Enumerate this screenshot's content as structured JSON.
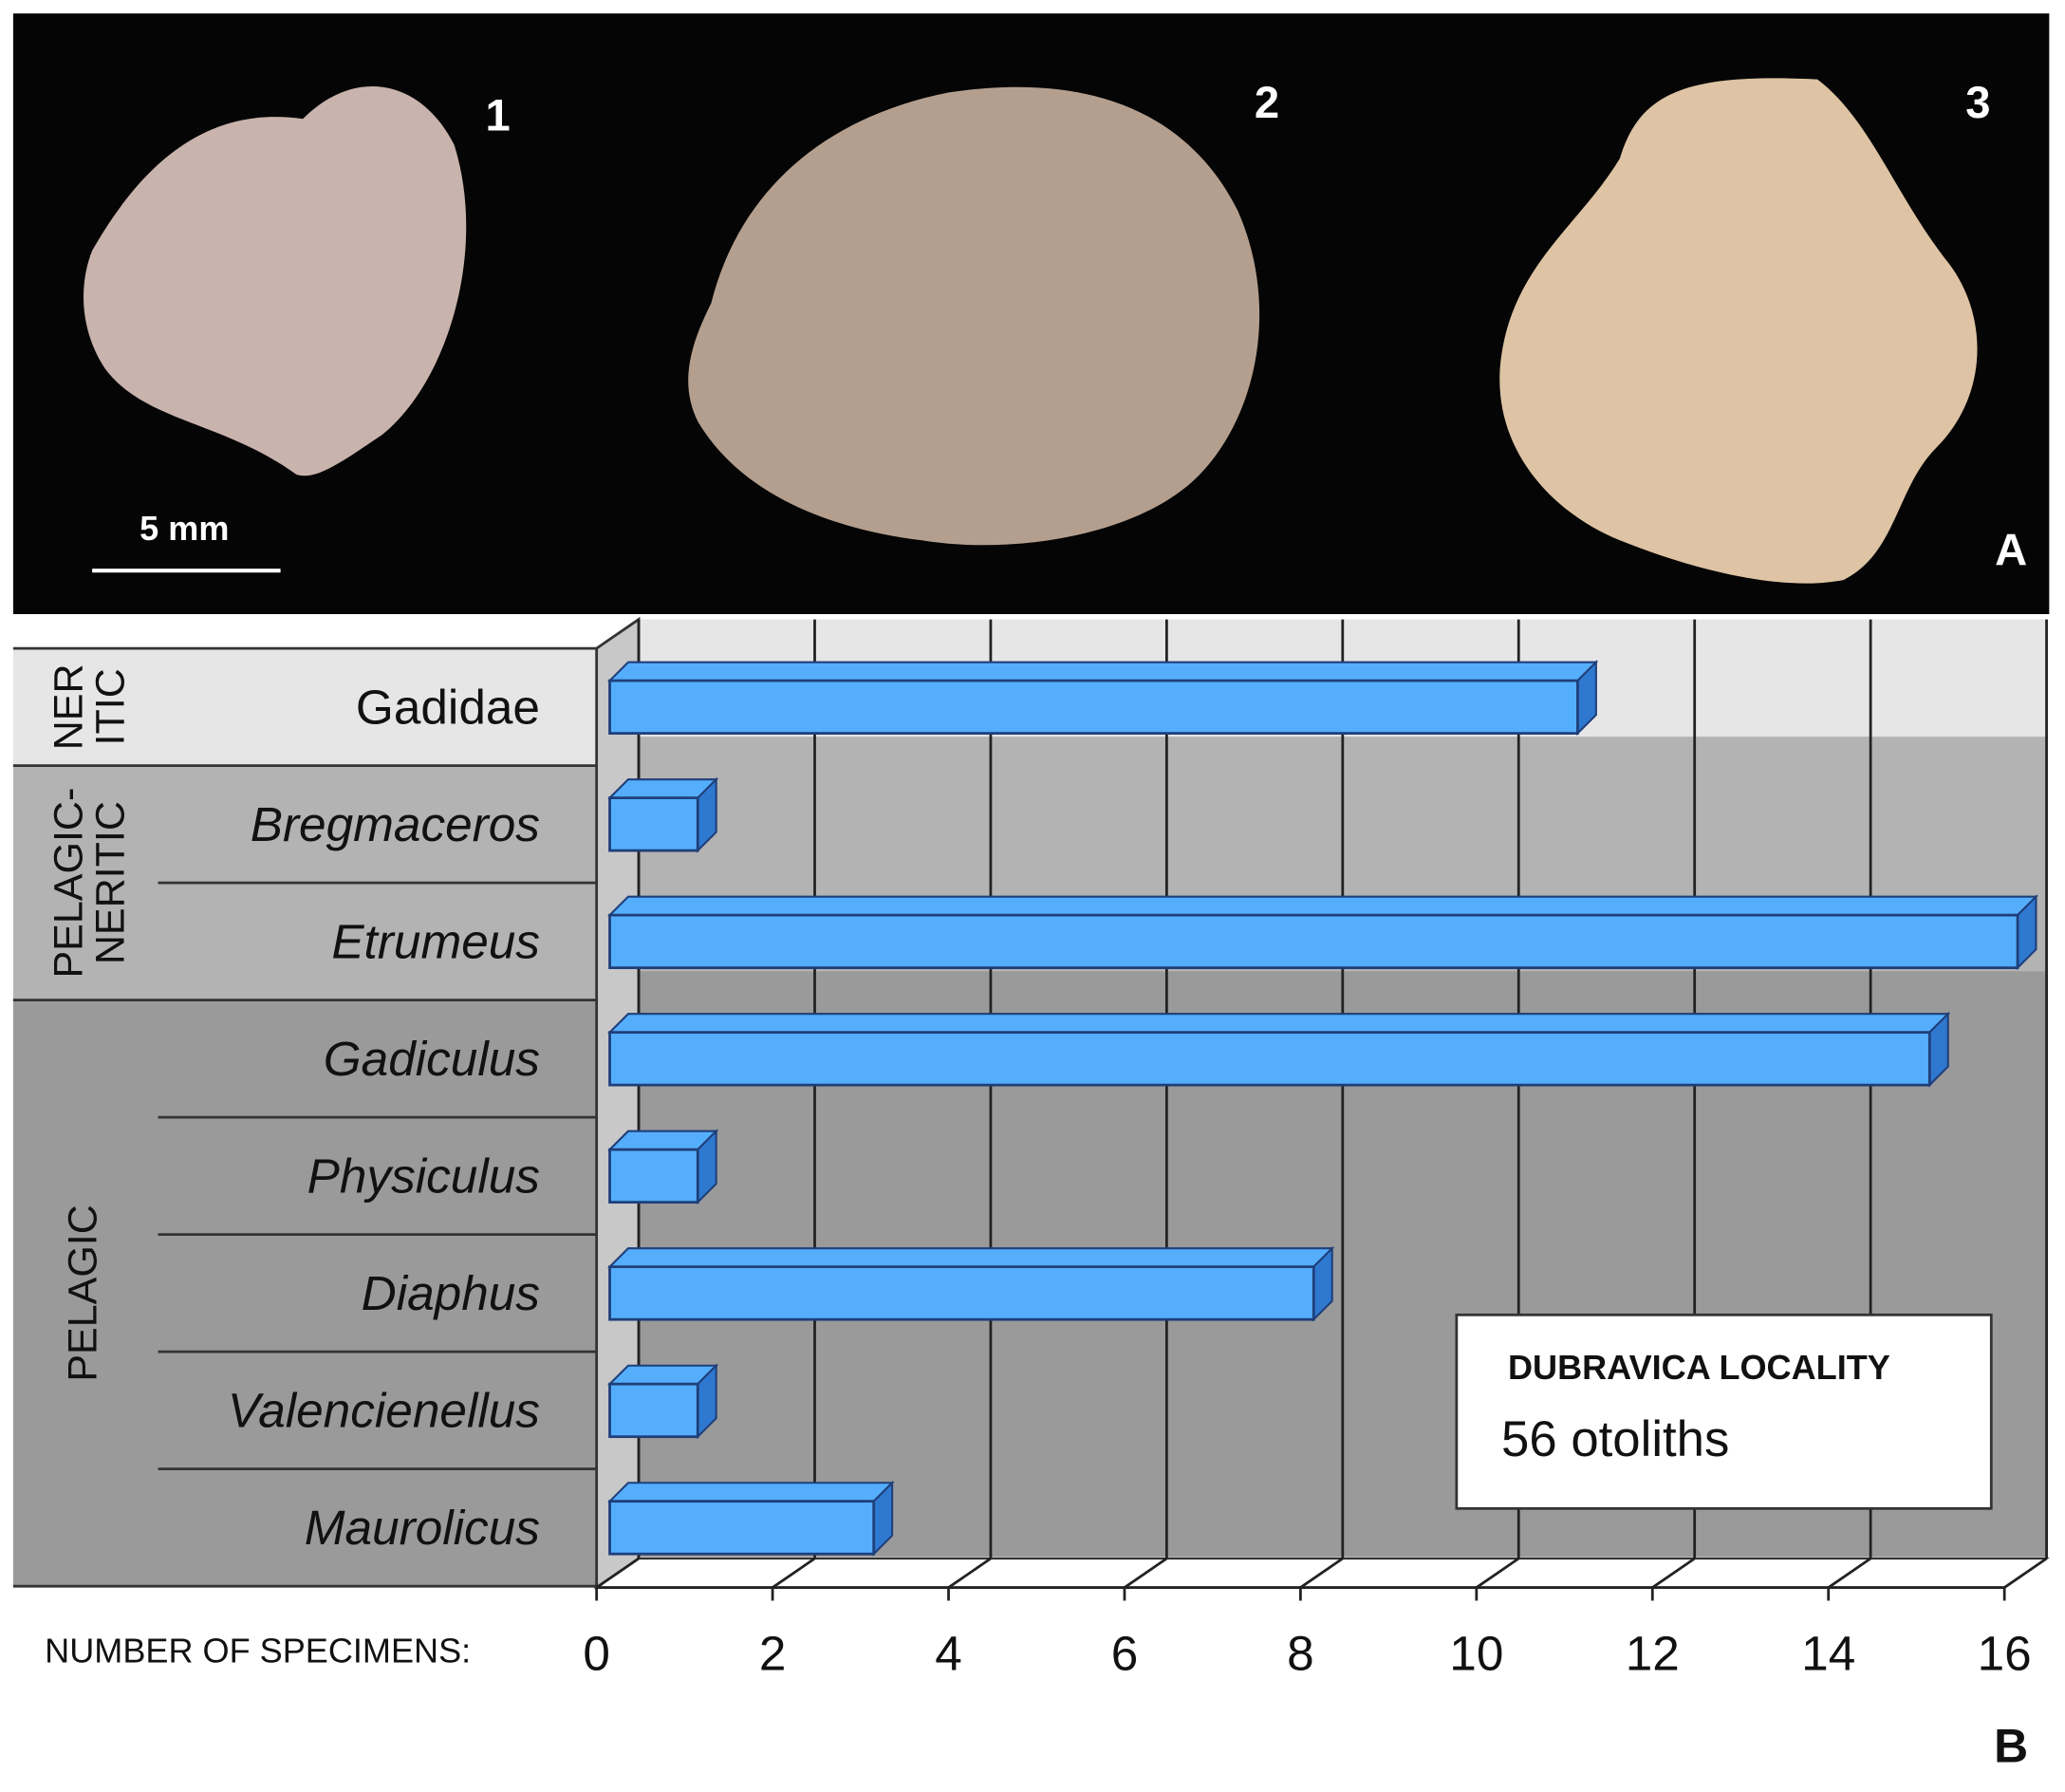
{
  "photos": {
    "labels": [
      "1",
      "2",
      "3"
    ],
    "scale_bar": "5 mm",
    "panel": "A"
  },
  "chart_data": {
    "type": "bar",
    "orientation": "horizontal",
    "categories": [
      "Gadidae",
      "Bregmaceros",
      "Etrumeus",
      "Gadiculus",
      "Physiculus",
      "Diaphus",
      "Valencienellus",
      "Maurolicus"
    ],
    "italic": [
      false,
      true,
      true,
      true,
      true,
      true,
      true,
      true
    ],
    "values": [
      11,
      1,
      16,
      15,
      1,
      8,
      1,
      3
    ],
    "color": "#55aefc",
    "groups": [
      {
        "lines": [
          "NER",
          "ITIC"
        ]
      },
      {
        "lines": [
          "PELAGIC-",
          "NERITIC"
        ]
      },
      {
        "lines": [
          "PELAGIC"
        ]
      }
    ],
    "xlabel": "NUMBER OF SPECIMENS:",
    "xlim": [
      0,
      16
    ],
    "xticks": [
      0,
      2,
      4,
      6,
      8,
      10,
      12,
      14,
      16
    ],
    "grid": true,
    "annotation": {
      "title": "DUBRAVICA LOCALITY",
      "text": "56 otoliths"
    },
    "panel": "B"
  }
}
